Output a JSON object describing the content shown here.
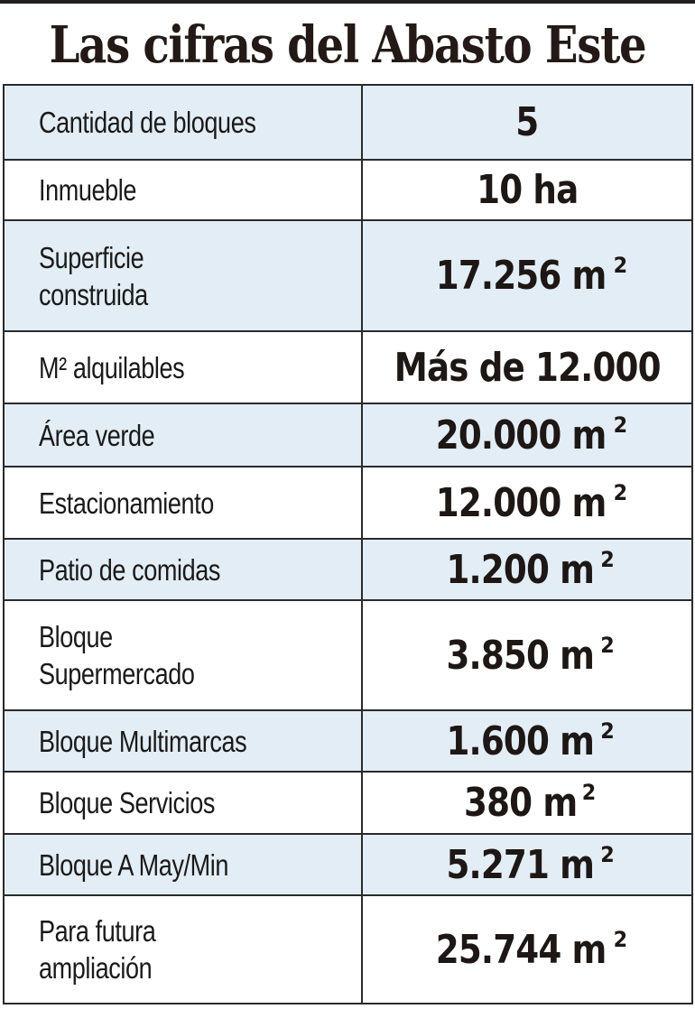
{
  "title": "Las cifras del Abasto Este",
  "colors": {
    "shaded_row": "#e3edf5",
    "plain_row": "#ffffff",
    "border": "#2a2a2a",
    "text": "#1d1715"
  },
  "rows": [
    {
      "label": "Cantidad de bloques",
      "value": "5",
      "unit": "",
      "height": 83,
      "shaded": true
    },
    {
      "label": "Inmueble",
      "value": "10 ha",
      "unit": "",
      "height": 67,
      "shaded": false
    },
    {
      "label": "Superficie construida",
      "value": "17.256 m",
      "unit": "2",
      "height": 123,
      "shaded": true
    },
    {
      "label": "M² alquilables",
      "value": "Más de 12.000",
      "unit": "",
      "height": 80,
      "shaded": false
    },
    {
      "label": "Área verde",
      "value": "20.000 m",
      "unit": "2",
      "height": 70,
      "shaded": true
    },
    {
      "label": "Estacionamiento",
      "value": "12.000 m",
      "unit": "2",
      "height": 80,
      "shaded": false
    },
    {
      "label": "Patio de comidas",
      "value": "1.200 m",
      "unit": "2",
      "height": 68,
      "shaded": true
    },
    {
      "label": "Bloque Supermercado",
      "value": "3.850 m",
      "unit": "2",
      "height": 122,
      "shaded": false
    },
    {
      "label": "Bloque Multimarcas",
      "value": "1.600 m",
      "unit": "2",
      "height": 68,
      "shaded": true
    },
    {
      "label": "Bloque Servicios",
      "value": "380 m",
      "unit": "2",
      "height": 69,
      "shaded": false
    },
    {
      "label": "Bloque A May/Min",
      "value": "5.271 m",
      "unit": "2",
      "height": 68,
      "shaded": true
    },
    {
      "label": "Para futura ampliación",
      "value": "25.744 m",
      "unit": "2",
      "height": 120,
      "shaded": false
    }
  ]
}
